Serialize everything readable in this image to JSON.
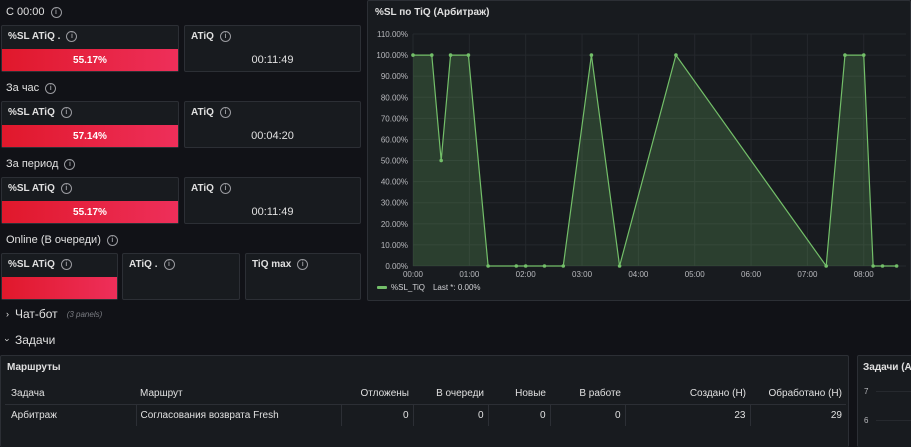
{
  "left": {
    "sections": [
      {
        "title": "С 00:00",
        "sl_title": "%SL ATiQ .",
        "sl_value": "55.17%",
        "atiq_title": "ATiQ",
        "atiq_value": "00:11:49"
      },
      {
        "title": "За час",
        "sl_title": "%SL ATiQ",
        "sl_value": "57.14%",
        "atiq_title": "ATiQ",
        "atiq_value": "00:04:20"
      },
      {
        "title": "За период",
        "sl_title": "%SL ATiQ",
        "sl_value": "55.17%",
        "atiq_title": "ATiQ",
        "atiq_value": "00:11:49"
      }
    ],
    "online": {
      "title": "Online (В очереди)",
      "sl_title": "%SL ATiQ",
      "atiq_title": "ATiQ .",
      "tiq_title": "TiQ max"
    }
  },
  "chart_panel": {
    "title": "%SL по TiQ (Арбитраж)",
    "legend_label": "%SL_TiQ",
    "legend_last": "Last *: 0.00%"
  },
  "chart_data": {
    "type": "area",
    "series": [
      {
        "name": "%SL_TiQ",
        "color": "#73bf69",
        "points": [
          [
            "00:00",
            100
          ],
          [
            "00:20",
            100
          ],
          [
            "00:30",
            50
          ],
          [
            "00:40",
            100
          ],
          [
            "00:59",
            100
          ],
          [
            "01:20",
            0
          ],
          [
            "01:50",
            0
          ],
          [
            "02:00",
            0
          ],
          [
            "02:20",
            0
          ],
          [
            "02:40",
            0
          ],
          [
            "03:10",
            100
          ],
          [
            "03:40",
            0
          ],
          [
            "04:40",
            100
          ],
          [
            "07:20",
            0
          ],
          [
            "07:40",
            100
          ],
          [
            "08:00",
            100
          ],
          [
            "08:10",
            0
          ],
          [
            "08:20",
            0
          ],
          [
            "08:35",
            0
          ]
        ]
      }
    ],
    "y_ticks": [
      "0.00%",
      "10.00%",
      "20.00%",
      "30.00%",
      "40.00%",
      "50.00%",
      "60.00%",
      "70.00%",
      "80.00%",
      "90.00%",
      "100.00%",
      "110.00%"
    ],
    "x_ticks": [
      "00:00",
      "01:00",
      "02:00",
      "03:00",
      "04:00",
      "05:00",
      "06:00",
      "07:00",
      "08:00"
    ],
    "ylim": [
      0,
      110
    ],
    "grid": true,
    "legend_position": "bottom-left"
  },
  "rows": [
    {
      "label": "Чат-бот",
      "meta": "(3 panels)",
      "collapsed": true
    },
    {
      "label": "Задачи",
      "collapsed": false
    }
  ],
  "routes": {
    "title": "Маршруты",
    "headers": [
      "Задача",
      "Маршрут",
      "Отложены",
      "В очереди",
      "Новые",
      "В работе",
      "Создано (Н)",
      "Обработано (Н)"
    ],
    "rows": [
      [
        "Арбитраж",
        "Согласования возврата Fresh",
        "0",
        "0",
        "0",
        "0",
        "23",
        "29"
      ]
    ]
  },
  "tasks_panel": {
    "title": "Задачи (Ар",
    "y_ticks": [
      "7",
      "6"
    ]
  },
  "colors": {
    "accent_red": "#e0182b",
    "series_green": "#73bf69",
    "bg": "#111217",
    "panel": "#181b1f"
  }
}
